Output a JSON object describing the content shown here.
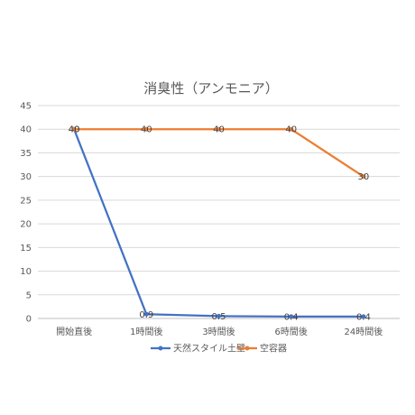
{
  "chart_data": {
    "type": "line",
    "title": "消臭性（アンモニア）",
    "categories": [
      "開始直後",
      "1時間後",
      "3時間後",
      "6時間後",
      "24時間後"
    ],
    "ylim": [
      0,
      45
    ],
    "yticks": [
      0,
      5,
      10,
      15,
      20,
      25,
      30,
      35,
      40,
      45
    ],
    "grid": true,
    "legend": "bottom",
    "series": [
      {
        "name": "天然スタイル土壁",
        "color": "#4472C4",
        "values": [
          40,
          0.9,
          0.5,
          0.4,
          0.4
        ]
      },
      {
        "name": "空容器",
        "color": "#ED7D31",
        "values": [
          40,
          40,
          40,
          40,
          30
        ]
      }
    ]
  }
}
